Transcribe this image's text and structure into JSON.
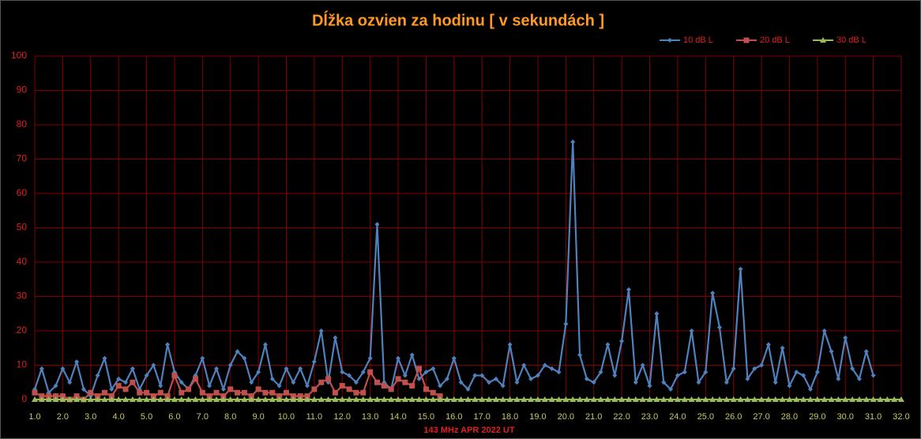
{
  "chart_data": {
    "type": "line",
    "title": "Dĺžka ozvien za hodinu [ v sekundách ]",
    "x_label": "143 MHz APR  2022  UT",
    "x": [
      1,
      1.25,
      1.5,
      1.75,
      2,
      2.25,
      2.5,
      2.75,
      3,
      3.25,
      3.5,
      3.75,
      4,
      4.25,
      4.5,
      4.75,
      5,
      5.25,
      5.5,
      5.75,
      6,
      6.25,
      6.5,
      6.75,
      7,
      7.25,
      7.5,
      7.75,
      8,
      8.25,
      8.5,
      8.75,
      9,
      9.25,
      9.5,
      9.75,
      10,
      10.25,
      10.5,
      10.75,
      11,
      11.25,
      11.5,
      11.75,
      12,
      12.25,
      12.5,
      12.75,
      13,
      13.25,
      13.5,
      13.75,
      14,
      14.25,
      14.5,
      14.75,
      15,
      15.25,
      15.5,
      15.75,
      16,
      16.25,
      16.5,
      16.75,
      17,
      17.25,
      17.5,
      17.75,
      18,
      18.25,
      18.5,
      18.75,
      19,
      19.25,
      19.5,
      19.75,
      20,
      20.25,
      20.5,
      20.75,
      21,
      21.25,
      21.5,
      21.75,
      22,
      22.25,
      22.5,
      22.75,
      23,
      23.25,
      23.5,
      23.75,
      24,
      24.25,
      24.5,
      24.75,
      25,
      25.25,
      25.5,
      25.75,
      26,
      26.25,
      26.5,
      26.75,
      27,
      27.25,
      27.5,
      27.75,
      28,
      28.25,
      28.5,
      28.75,
      29,
      29.25,
      29.5,
      29.75,
      30,
      30.25,
      30.5,
      30.75,
      31,
      31.25,
      31.5,
      31.75,
      32
    ],
    "series": [
      {
        "name": "10 dB L",
        "color": "#4f81bd",
        "marker": "diamond",
        "values": [
          3,
          9,
          2,
          4,
          9,
          5,
          11,
          3,
          1,
          7,
          12,
          3,
          6,
          5,
          9,
          3,
          7,
          10,
          4,
          16,
          8,
          5,
          3,
          7,
          12,
          4,
          9,
          3,
          10,
          14,
          12,
          5,
          8,
          16,
          6,
          4,
          9,
          5,
          9,
          4,
          11,
          20,
          5,
          18,
          8,
          7,
          5,
          8,
          12,
          51,
          5,
          3,
          12,
          7,
          13,
          6,
          8,
          9,
          4,
          6,
          12,
          5,
          3,
          7,
          7,
          5,
          6,
          4,
          16,
          5,
          10,
          6,
          7,
          10,
          9,
          8,
          22,
          75,
          13,
          6,
          5,
          8,
          16,
          7,
          17,
          32,
          5,
          10,
          4,
          25,
          5,
          3,
          7,
          8,
          20,
          5,
          8,
          31,
          21,
          5,
          9,
          38,
          6,
          9,
          10,
          16,
          5,
          15,
          4,
          8,
          7,
          3,
          8,
          20,
          14,
          6,
          18,
          9,
          6,
          14,
          7,
          null,
          null,
          null,
          null
        ]
      },
      {
        "name": "20 dB L",
        "color": "#c0504d",
        "marker": "square",
        "values": [
          2,
          1,
          1,
          1,
          1,
          0,
          1,
          0,
          2,
          1,
          2,
          1,
          4,
          3,
          5,
          2,
          2,
          1,
          2,
          1,
          7,
          2,
          3,
          6,
          2,
          1,
          2,
          1,
          3,
          2,
          2,
          1,
          3,
          2,
          2,
          1,
          2,
          1,
          1,
          1,
          3,
          5,
          6,
          2,
          4,
          3,
          2,
          2,
          8,
          5,
          4,
          3,
          6,
          5,
          4,
          9,
          3,
          2,
          1,
          null,
          null,
          null,
          null,
          null,
          null,
          null,
          null,
          null,
          null,
          null,
          null,
          null,
          null,
          null,
          null,
          null,
          null,
          null,
          null,
          null,
          null,
          null,
          null,
          null,
          null,
          null,
          null,
          null,
          null,
          null,
          null,
          null,
          null,
          null,
          null,
          null,
          null,
          null,
          null,
          null,
          null,
          null,
          null,
          null,
          null,
          null,
          null,
          null,
          null,
          null,
          null,
          null,
          null,
          null,
          null,
          null,
          null,
          null,
          null,
          null,
          null,
          null,
          null,
          null,
          null
        ]
      },
      {
        "name": "30 dB L",
        "color": "#9bbb59",
        "marker": "triangle",
        "values": [
          0,
          0,
          0,
          0,
          0,
          0,
          0,
          0,
          0,
          0,
          0,
          0,
          0,
          0,
          0,
          0,
          0,
          0,
          0,
          0,
          0,
          0,
          0,
          0,
          0,
          0,
          0,
          0,
          0,
          0,
          0,
          0,
          0,
          0,
          0,
          0,
          0,
          0,
          0,
          0,
          0,
          0,
          0,
          0,
          0,
          0,
          0,
          0,
          0,
          0,
          0,
          0,
          0,
          0,
          0,
          0,
          0,
          0,
          0,
          0,
          0,
          0,
          0,
          0,
          0,
          0,
          0,
          0,
          0,
          0,
          0,
          0,
          0,
          0,
          0,
          0,
          0,
          0,
          0,
          0,
          0,
          0,
          0,
          0,
          0,
          0,
          0,
          0,
          0,
          0,
          0,
          0,
          0,
          0,
          0,
          0,
          0,
          0,
          0,
          0,
          0,
          0,
          0,
          0,
          0,
          0,
          0,
          0,
          0,
          0,
          0,
          0,
          0,
          0,
          0,
          0,
          0,
          0,
          0,
          0,
          0,
          0,
          0,
          0,
          0
        ]
      }
    ],
    "xlim": [
      1,
      32
    ],
    "xticks": [
      {
        "value": 1,
        "label": "1.0"
      },
      {
        "value": 2,
        "label": "2.0"
      },
      {
        "value": 3,
        "label": "3.0"
      },
      {
        "value": 4,
        "label": "4.0"
      },
      {
        "value": 5,
        "label": "5.0"
      },
      {
        "value": 6,
        "label": "6.0"
      },
      {
        "value": 7,
        "label": "7.0"
      },
      {
        "value": 8,
        "label": "8.0"
      },
      {
        "value": 9,
        "label": "9.0"
      },
      {
        "value": 10,
        "label": "10.0"
      },
      {
        "value": 11,
        "label": "11.0"
      },
      {
        "value": 12,
        "label": "12.0"
      },
      {
        "value": 13,
        "label": "13.0"
      },
      {
        "value": 14,
        "label": "14.0"
      },
      {
        "value": 15,
        "label": "15.0"
      },
      {
        "value": 16,
        "label": "16.0"
      },
      {
        "value": 17,
        "label": "17.0"
      },
      {
        "value": 18,
        "label": "18.0"
      },
      {
        "value": 19,
        "label": "19.0"
      },
      {
        "value": 20,
        "label": "20.0"
      },
      {
        "value": 21,
        "label": "21.0"
      },
      {
        "value": 22,
        "label": "22.0"
      },
      {
        "value": 23,
        "label": "23.0"
      },
      {
        "value": 24,
        "label": "24.0"
      },
      {
        "value": 25,
        "label": "25.0"
      },
      {
        "value": 26,
        "label": "26.0"
      },
      {
        "value": 27,
        "label": "27.0"
      },
      {
        "value": 28,
        "label": "28.0"
      },
      {
        "value": 29,
        "label": "29.0"
      },
      {
        "value": 30,
        "label": "30.0"
      },
      {
        "value": 31,
        "label": "31.0"
      },
      {
        "value": 32,
        "label": "32.0"
      }
    ],
    "ylim": [
      0,
      100
    ],
    "yticks": [
      0,
      10,
      20,
      30,
      40,
      50,
      60,
      70,
      80,
      90,
      100
    ],
    "grid": true,
    "legend": "top-right"
  }
}
